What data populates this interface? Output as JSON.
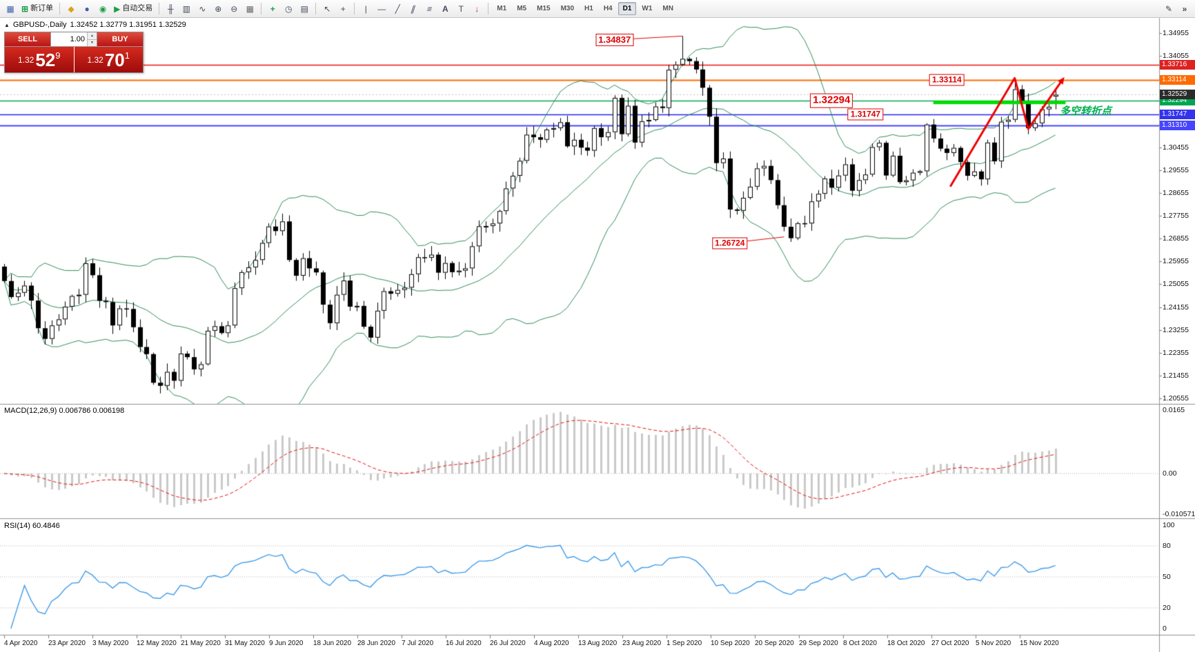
{
  "toolbar": {
    "new_order_label": "新订单",
    "autotrading_label": "自动交易",
    "timeframes": [
      "M1",
      "M5",
      "M15",
      "M30",
      "H1",
      "H4",
      "D1",
      "W1",
      "MN"
    ],
    "active_timeframe": "D1"
  },
  "icons": {
    "charts": "▦",
    "new_order": "⊞",
    "funds": "◆",
    "profile": "●",
    "community": "◉",
    "autotrading_play": "▶",
    "bar_chart": "╫",
    "candle_chart": "▥",
    "line_chart": "∿",
    "zoom_in": "⊕",
    "zoom_out": "⊖",
    "tile_windows": "▦",
    "indicators": "+",
    "periods": "◷",
    "templates": "▤",
    "cursor": "↖",
    "crosshair": "+",
    "vline": "|",
    "hline": "—",
    "trendline": "╱",
    "channel": "∥",
    "fibonacci": "≡",
    "text": "A",
    "text_label": "T",
    "arrows": "↓",
    "collapse": "▲",
    "pencil": "✎",
    "overflow": "»",
    "spin_up": "▲",
    "spin_down": "▼"
  },
  "chart": {
    "symbol": "GBPUSD-,Daily",
    "ohlc": "1.32452 1.32779 1.31951 1.32529",
    "one_click": {
      "sell_label": "SELL",
      "buy_label": "BUY",
      "volume": "1.00",
      "sell_price": {
        "prefix": "1.32",
        "big": "52",
        "sup": "9"
      },
      "buy_price": {
        "prefix": "1.32",
        "big": "70",
        "sup": "1"
      }
    },
    "price_axis": [
      "1.34955",
      "1.34055",
      "1.33155",
      "1.32255",
      "1.31355",
      "1.30455",
      "1.29555",
      "1.28655",
      "1.27755",
      "1.26855",
      "1.25955",
      "1.25055",
      "1.24155",
      "1.23255",
      "1.22355",
      "1.21455",
      "1.20555"
    ],
    "hlines": [
      {
        "price": 1.33716,
        "color": "#ee1111",
        "width": 1.5,
        "tag_bg": "#dd2222"
      },
      {
        "price": 1.33114,
        "color": "#ff6a00",
        "width": 2,
        "tag_bg": "#ff6a00"
      },
      {
        "price": 1.32294,
        "color": "#00a651",
        "width": 1.5,
        "tag_bg": "#00a651"
      },
      {
        "price": 1.31747,
        "color": "#2222ee",
        "width": 1.5,
        "tag_bg": "#3333ee"
      },
      {
        "price": 1.3131,
        "color": "#4545ff",
        "width": 2,
        "tag_bg": "#4545ff"
      }
    ],
    "current_tag": {
      "text": "1.32529",
      "bg": "#2b2b2b"
    },
    "support_bar": {
      "price": 1.3222,
      "from_i": 137,
      "to_i": 156.5,
      "color": "#00dd00"
    },
    "zigzag": {
      "color": "#ee0000",
      "points": [
        {
          "i": 139.5,
          "p": 1.289
        },
        {
          "i": 149,
          "p": 1.3318
        },
        {
          "i": 151,
          "p": 1.3118
        },
        {
          "i": 155.8,
          "p": 1.3302
        }
      ]
    },
    "callouts": [
      {
        "text": "1.34837",
        "i": 90,
        "p": 1.3469,
        "size": 13,
        "to": {
          "i": 100,
          "p": 1.34837
        }
      },
      {
        "text": "1.33114",
        "i": 139,
        "p": 1.3312,
        "size": 12,
        "to": null
      },
      {
        "text": "1.32294",
        "i": 122,
        "p": 1.3228,
        "size": 15,
        "to": null
      },
      {
        "text": "1.31747",
        "i": 127,
        "p": 1.3175,
        "size": 12,
        "to": null
      },
      {
        "text": "1.26724",
        "i": 107,
        "p": 1.2668,
        "size": 12,
        "to": {
          "i": 115,
          "p": 1.2692
        }
      }
    ],
    "annotation": {
      "text": "多空转折点",
      "color": "#00b050"
    }
  },
  "macd": {
    "label": "MACD(12,26,9) 0.006786 0.006198",
    "axis": [
      "0.0165",
      "0.00",
      "-0.010571"
    ]
  },
  "rsi": {
    "label": "RSI(14) 60.4846",
    "axis": [
      "100",
      "80",
      "50",
      "20",
      "0"
    ],
    "levels": [
      80,
      50,
      20
    ]
  },
  "chart_data": {
    "type": "candlestick",
    "symbol": "GBPUSD",
    "timeframe": "Daily",
    "y_range": [
      1.20555,
      1.34955
    ],
    "open_first": 1.2575,
    "closes": [
      1.2518,
      1.2455,
      1.2472,
      1.25,
      1.2441,
      1.2332,
      1.229,
      1.2343,
      1.2367,
      1.2417,
      1.2459,
      1.2464,
      1.2588,
      1.2541,
      1.244,
      1.2435,
      1.2343,
      1.241,
      1.2408,
      1.2336,
      1.2258,
      1.223,
      1.2117,
      1.2105,
      1.216,
      1.2125,
      1.2232,
      1.2218,
      1.217,
      1.219,
      1.2322,
      1.234,
      1.2313,
      1.2343,
      1.249,
      1.2553,
      1.2572,
      1.2601,
      1.2668,
      1.2733,
      1.2715,
      1.2753,
      1.2601,
      1.2539,
      1.2608,
      1.2568,
      1.2552,
      1.2425,
      1.2352,
      1.2464,
      1.252,
      1.2417,
      1.242,
      1.2338,
      1.2295,
      1.2401,
      1.2478,
      1.2468,
      1.2483,
      1.2492,
      1.2545,
      1.2612,
      1.261,
      1.2622,
      1.2551,
      1.2589,
      1.2553,
      1.2559,
      1.2568,
      1.2655,
      1.2734,
      1.2735,
      1.2745,
      1.2794,
      1.2883,
      1.2933,
      1.2992,
      1.3095,
      1.3085,
      1.3075,
      1.3115,
      1.3121,
      1.3144,
      1.3049,
      1.3075,
      1.3044,
      1.3032,
      1.3121,
      1.3085,
      1.3105,
      1.324,
      1.3097,
      1.3209,
      1.3064,
      1.3148,
      1.3153,
      1.3206,
      1.32,
      1.3351,
      1.3371,
      1.3394,
      1.3385,
      1.3352,
      1.328,
      1.3166,
      1.2983,
      1.3001,
      1.28,
      1.2795,
      1.2846,
      1.289,
      1.2962,
      1.2972,
      1.2916,
      1.2817,
      1.2732,
      1.2687,
      1.2746,
      1.2745,
      1.2832,
      1.2862,
      1.2922,
      1.2886,
      1.2934,
      1.2978,
      1.2874,
      1.2916,
      1.2938,
      1.3046,
      1.3063,
      1.2934,
      1.3012,
      1.2908,
      1.2915,
      1.2945,
      1.2951,
      1.3135,
      1.308,
      1.304,
      1.3023,
      1.3043,
      1.2987,
      1.2933,
      1.295,
      1.2919,
      1.3064,
      1.299,
      1.3146,
      1.3154,
      1.3274,
      1.3225,
      1.3121,
      1.314,
      1.3195,
      1.3205,
      1.32529
    ],
    "overrides": {
      "high": {
        "100": 1.34837,
        "149": 1.33114
      },
      "low": {
        "23": 1.2075,
        "116": 1.26724
      }
    },
    "last_candle": {
      "open": 1.32452,
      "high": 1.32779,
      "low": 1.31951,
      "close": 1.32529
    },
    "dates": [
      "4 Apr 2020",
      "23 Apr 2020",
      "3 May 2020",
      "12 May 2020",
      "21 May 2020",
      "31 May 2020",
      "9 Jun 2020",
      "18 Jun 2020",
      "28 Jun 2020",
      "7 Jul 2020",
      "16 Jul 2020",
      "26 Jul 2020",
      "4 Aug 2020",
      "13 Aug 2020",
      "23 Aug 2020",
      "1 Sep 2020",
      "10 Sep 2020",
      "20 Sep 2020",
      "29 Sep 2020",
      "8 Oct 2020",
      "18 Oct 2020",
      "27 Oct 2020",
      "5 Nov 2020",
      "15 Nov 2020"
    ],
    "indicators": [
      {
        "name": "Bollinger Bands",
        "period": 20,
        "deviation": 2,
        "color": "#2e8b57"
      },
      {
        "name": "MACD",
        "params": [
          12,
          26,
          9
        ],
        "values": [
          0.006786,
          0.006198
        ]
      },
      {
        "name": "RSI",
        "period": 14,
        "value": 60.4846
      }
    ]
  }
}
